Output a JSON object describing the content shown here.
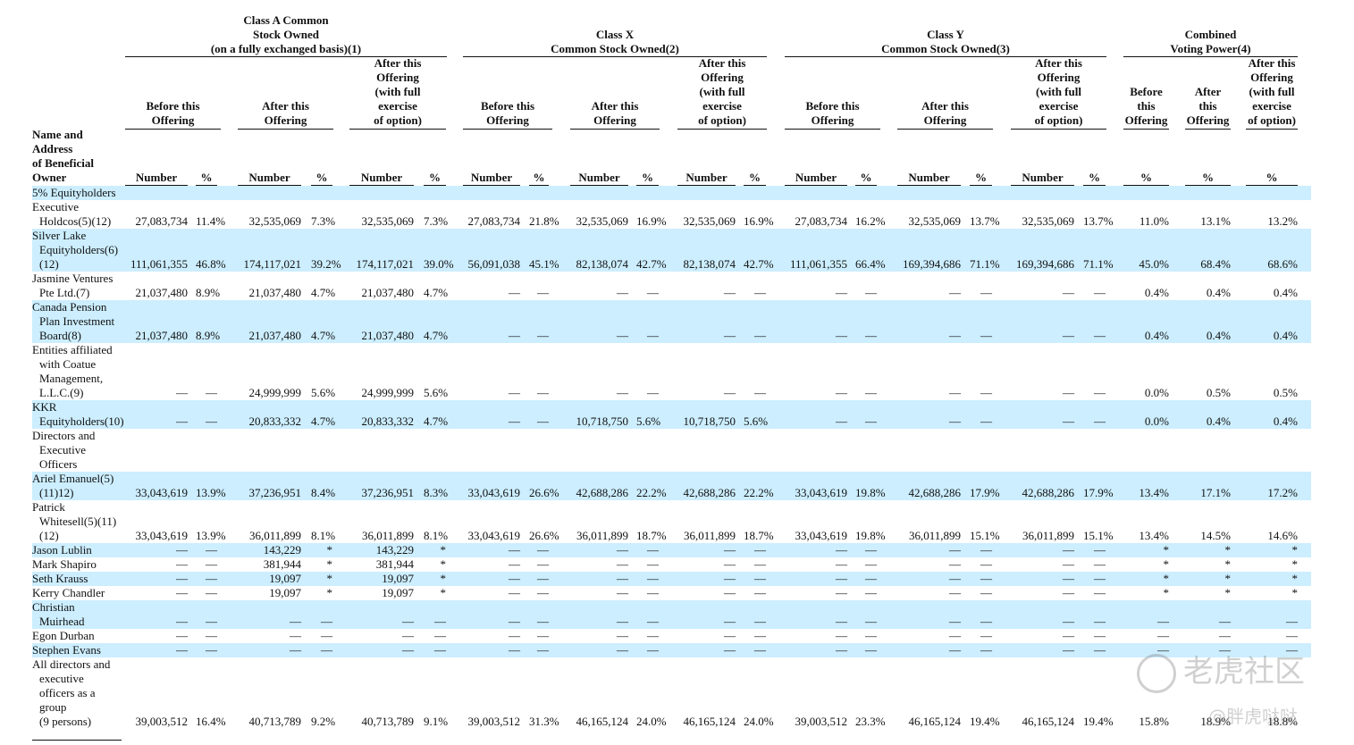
{
  "groups": [
    {
      "label": "Class A Common Stock Owned (on a fully exchanged basis)(1)",
      "lines": [
        "Class A Common",
        "Stock Owned",
        "(on a fully exchanged basis)(1)"
      ]
    },
    {
      "label": "Class X Common Stock Owned(2)",
      "lines": [
        "Class X",
        "Common Stock Owned(2)"
      ]
    },
    {
      "label": "Class Y Common Stock Owned(3)",
      "lines": [
        "Class Y",
        "Common Stock Owned(3)"
      ]
    },
    {
      "label": "Combined Voting Power(4)",
      "lines": [
        "Combined",
        "Voting Power(4)"
      ]
    }
  ],
  "subheaders": {
    "before": [
      "Before this",
      "Offering"
    ],
    "after": [
      "After this",
      "Offering"
    ],
    "after_full": [
      "After this",
      "Offering",
      "(with full",
      "exercise",
      "of option)"
    ],
    "before_narrow": [
      "Before",
      "this",
      "Offering"
    ],
    "after_narrow": [
      "After",
      "this",
      "Offering"
    ]
  },
  "name_header": [
    "Name and",
    "Address",
    "of Beneficial",
    "Owner"
  ],
  "col_headers": {
    "number": "Number",
    "pct": "%"
  },
  "rows": [
    {
      "name": [
        "5% Equityholders"
      ],
      "values": []
    },
    {
      "name": [
        "Executive",
        "Holdcos(5)(12)"
      ],
      "values": [
        "27,083,734",
        "11.4%",
        "32,535,069",
        "7.3%",
        "32,535,069",
        "7.3%",
        "27,083,734",
        "21.8%",
        "32,535,069",
        "16.9%",
        "32,535,069",
        "16.9%",
        "27,083,734",
        "16.2%",
        "32,535,069",
        "13.7%",
        "32,535,069",
        "13.7%",
        "11.0%",
        "13.1%",
        "13.2%"
      ]
    },
    {
      "name": [
        "Silver Lake",
        "Equityholders(6)",
        "(12)"
      ],
      "values": [
        "111,061,355",
        "46.8%",
        "174,117,021",
        "39.2%",
        "174,117,021",
        "39.0%",
        "56,091,038",
        "45.1%",
        "82,138,074",
        "42.7%",
        "82,138,074",
        "42.7%",
        "111,061,355",
        "66.4%",
        "169,394,686",
        "71.1%",
        "169,394,686",
        "71.1%",
        "45.0%",
        "68.4%",
        "68.6%"
      ]
    },
    {
      "name": [
        "Jasmine Ventures",
        "Pte Ltd.(7)"
      ],
      "values": [
        "21,037,480",
        "8.9%",
        "21,037,480",
        "4.7%",
        "21,037,480",
        "4.7%",
        "—",
        "—",
        "—",
        "—",
        "—",
        "—",
        "—",
        "—",
        "—",
        "—",
        "—",
        "—",
        "0.4%",
        "0.4%",
        "0.4%"
      ]
    },
    {
      "name": [
        "Canada Pension",
        "Plan Investment",
        "Board(8)"
      ],
      "values": [
        "21,037,480",
        "8.9%",
        "21,037,480",
        "4.7%",
        "21,037,480",
        "4.7%",
        "—",
        "—",
        "—",
        "—",
        "—",
        "—",
        "—",
        "—",
        "—",
        "—",
        "—",
        "—",
        "0.4%",
        "0.4%",
        "0.4%"
      ]
    },
    {
      "name": [
        "Entities affiliated",
        "with Coatue",
        "Management,",
        "L.L.C.(9)"
      ],
      "values": [
        "—",
        "—",
        "24,999,999",
        "5.6%",
        "24,999,999",
        "5.6%",
        "—",
        "—",
        "—",
        "—",
        "—",
        "—",
        "—",
        "—",
        "—",
        "—",
        "—",
        "—",
        "0.0%",
        "0.5%",
        "0.5%"
      ]
    },
    {
      "name": [
        "KKR",
        "Equityholders(10)"
      ],
      "values": [
        "—",
        "—",
        "20,833,332",
        "4.7%",
        "20,833,332",
        "4.7%",
        "—",
        "—",
        "10,718,750",
        "5.6%",
        "10,718,750",
        "5.6%",
        "—",
        "—",
        "—",
        "—",
        "—",
        "—",
        "0.0%",
        "0.4%",
        "0.4%"
      ]
    },
    {
      "name": [
        "Directors and",
        "Executive",
        "Officers"
      ],
      "values": []
    },
    {
      "name": [
        "Ariel Emanuel(5)",
        "(11)12)"
      ],
      "values": [
        "33,043,619",
        "13.9%",
        "37,236,951",
        "8.4%",
        "37,236,951",
        "8.3%",
        "33,043,619",
        "26.6%",
        "42,688,286",
        "22.2%",
        "42,688,286",
        "22.2%",
        "33,043,619",
        "19.8%",
        "42,688,286",
        "17.9%",
        "42,688,286",
        "17.9%",
        "13.4%",
        "17.1%",
        "17.2%"
      ]
    },
    {
      "name": [
        "Patrick",
        "Whitesell(5)(11)",
        "(12)"
      ],
      "values": [
        "33,043,619",
        "13.9%",
        "36,011,899",
        "8.1%",
        "36,011,899",
        "8.1%",
        "33,043,619",
        "26.6%",
        "36,011,899",
        "18.7%",
        "36,011,899",
        "18.7%",
        "33,043,619",
        "19.8%",
        "36,011,899",
        "15.1%",
        "36,011,899",
        "15.1%",
        "13.4%",
        "14.5%",
        "14.6%"
      ]
    },
    {
      "name": [
        "Jason Lublin"
      ],
      "values": [
        "—",
        "—",
        "143,229",
        "*",
        "143,229",
        "*",
        "—",
        "—",
        "—",
        "—",
        "—",
        "—",
        "—",
        "—",
        "—",
        "—",
        "—",
        "—",
        "*",
        "*",
        "*"
      ]
    },
    {
      "name": [
        "Mark Shapiro"
      ],
      "values": [
        "—",
        "—",
        "381,944",
        "*",
        "381,944",
        "*",
        "—",
        "—",
        "—",
        "—",
        "—",
        "—",
        "—",
        "—",
        "—",
        "—",
        "—",
        "—",
        "*",
        "*",
        "*"
      ]
    },
    {
      "name": [
        "Seth Krauss"
      ],
      "values": [
        "—",
        "—",
        "19,097",
        "*",
        "19,097",
        "*",
        "—",
        "—",
        "—",
        "—",
        "—",
        "—",
        "—",
        "—",
        "—",
        "—",
        "—",
        "—",
        "*",
        "*",
        "*"
      ]
    },
    {
      "name": [
        "Kerry Chandler"
      ],
      "values": [
        "—",
        "—",
        "19,097",
        "*",
        "19,097",
        "*",
        "—",
        "—",
        "—",
        "—",
        "—",
        "—",
        "—",
        "—",
        "—",
        "—",
        "—",
        "—",
        "*",
        "*",
        "*"
      ]
    },
    {
      "name": [
        "Christian",
        "Muirhead"
      ],
      "values": [
        "—",
        "—",
        "—",
        "—",
        "—",
        "—",
        "—",
        "—",
        "—",
        "—",
        "—",
        "—",
        "—",
        "—",
        "—",
        "—",
        "—",
        "—",
        "—",
        "—",
        "—"
      ]
    },
    {
      "name": [
        "Egon Durban"
      ],
      "values": [
        "—",
        "—",
        "—",
        "—",
        "—",
        "—",
        "—",
        "—",
        "—",
        "—",
        "—",
        "—",
        "—",
        "—",
        "—",
        "—",
        "—",
        "—",
        "—",
        "—",
        "—"
      ]
    },
    {
      "name": [
        "Stephen Evans"
      ],
      "values": [
        "—",
        "—",
        "—",
        "—",
        "—",
        "—",
        "—",
        "—",
        "—",
        "—",
        "—",
        "—",
        "—",
        "—",
        "—",
        "—",
        "—",
        "—",
        "—",
        "—",
        "—"
      ]
    },
    {
      "name": [
        "All directors and",
        "executive",
        "officers as a",
        "group",
        "(9 persons)"
      ],
      "values": [
        "39,003,512",
        "16.4%",
        "40,713,789",
        "9.2%",
        "40,713,789",
        "9.1%",
        "39,003,512",
        "31.3%",
        "46,165,124",
        "24.0%",
        "46,165,124",
        "24.0%",
        "39,003,512",
        "23.3%",
        "46,165,124",
        "19.4%",
        "46,165,124",
        "19.4%",
        "15.8%",
        "18.9%",
        "18.8%"
      ]
    }
  ],
  "watermark": {
    "logo_text": "老虎社区",
    "handle": "@胖虎哒哒"
  }
}
